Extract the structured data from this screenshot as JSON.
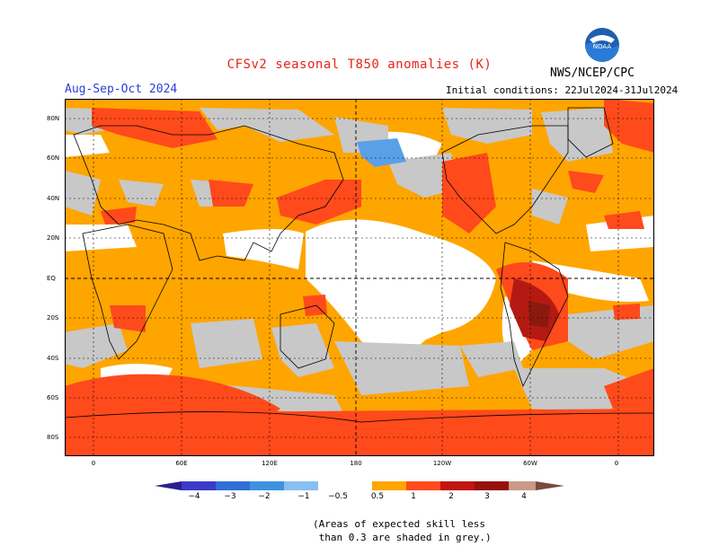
{
  "title": "CFSv2 seasonal T850 anomalies (K)",
  "agency": "NWS/NCEP/CPC",
  "logo_text": "NOAA",
  "period": "Aug-Sep-Oct 2024",
  "initial_conditions": "Initial conditions: 22Jul2024-31Jul2024",
  "lat_labels": [
    "80N",
    "60N",
    "40N",
    "20N",
    "EQ",
    "20S",
    "40S",
    "60S",
    "80S"
  ],
  "lon_labels": [
    "0",
    "60E",
    "120E",
    "180",
    "120W",
    "60W",
    "0"
  ],
  "colorbar": {
    "ticks": [
      "−4",
      "−3",
      "−2",
      "−1",
      "−0.5",
      "0.5",
      "1",
      "2",
      "3",
      "4"
    ],
    "colors": {
      "below_-4": "#2b1f8a",
      "-4_-3": "#3b3bc8",
      "-3_-2": "#2f6fd4",
      "-2_-1": "#3d92e0",
      "-1_-0.5": "#86bff0",
      "-0.5_0.5": "#ffffff",
      "0.5_1": "#ffa500",
      "1_2": "#ff4a1c",
      "2_3": "#c1140f",
      "3_4": "#96100c",
      "4_above": "#c99a88",
      "above": "#7a4a3c"
    }
  },
  "note": "(Areas of expected skill less\n than 0.3 are shaded in grey.)",
  "map_colors": {
    "orange": "#ffa500",
    "red": "#ff4a1c",
    "darkred": "#b51a12",
    "maroon": "#8a1a10",
    "grey": "#c8c8c8",
    "blue": "#5aa0e8",
    "white": "#ffffff"
  }
}
